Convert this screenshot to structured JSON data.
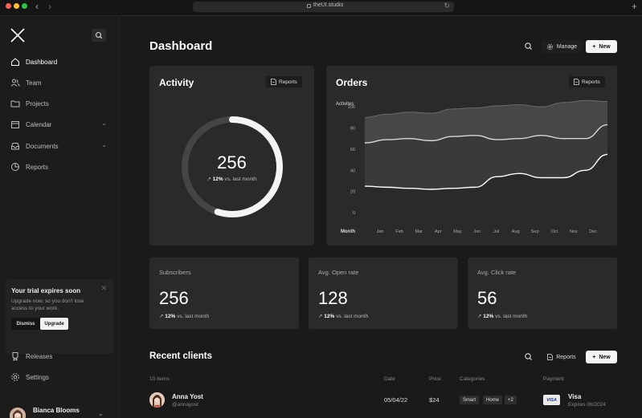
{
  "browser": {
    "url": "theUI.studio"
  },
  "sidebar": {
    "items": [
      {
        "label": "Dashboard",
        "icon": "home-icon",
        "active": true
      },
      {
        "label": "Team",
        "icon": "users-icon"
      },
      {
        "label": "Projects",
        "icon": "folder-icon"
      },
      {
        "label": "Calendar",
        "icon": "calendar-icon",
        "expandable": true
      },
      {
        "label": "Documents",
        "icon": "inbox-icon",
        "expandable": true
      },
      {
        "label": "Reports",
        "icon": "pie-chart-icon"
      }
    ],
    "trial": {
      "title": "Your trial expires soon",
      "text": "Upgrade now, so you don't lose access to your work.",
      "dismiss": "Dismiss",
      "upgrade": "Upgrade"
    },
    "bottom_items": [
      {
        "label": "Releases",
        "icon": "badge-icon"
      },
      {
        "label": "Settings",
        "icon": "gear-icon"
      }
    ],
    "user": {
      "name": "Bianca Blooms"
    }
  },
  "header": {
    "title": "Dashboard",
    "manage": "Manage",
    "new": "New"
  },
  "activity": {
    "title": "Activity",
    "reports": "Reports",
    "value": "256",
    "change": "12%",
    "change_text": "vs. last month",
    "progress": 0.55
  },
  "orders": {
    "title": "Orders",
    "reports": "Reports"
  },
  "chart_data": {
    "type": "area",
    "ylabel": "Activites",
    "xlabel": "Month",
    "categories": [
      "Jan",
      "Feb",
      "Mar",
      "Apr",
      "May",
      "Jun",
      "Jul",
      "Aug",
      "Sep",
      "Oct",
      "Nov",
      "Dec"
    ],
    "yticks": [
      0,
      20,
      40,
      60,
      80,
      100
    ],
    "ylim": [
      0,
      110
    ],
    "series": [
      {
        "values": [
          90,
          93,
          95,
          94,
          98,
          99,
          101,
          102,
          100,
          104,
          106,
          105
        ]
      },
      {
        "values": [
          66,
          69,
          70,
          68,
          72,
          73,
          69,
          70,
          73,
          70,
          70,
          83
        ]
      },
      {
        "values": [
          25,
          24,
          23,
          22,
          23,
          24,
          34,
          37,
          33,
          33,
          40,
          55
        ]
      }
    ]
  },
  "stats": [
    {
      "label": "Subscribers",
      "value": "256",
      "change": "12%",
      "change_text": "vs. last month"
    },
    {
      "label": "Avg. Open rate",
      "value": "128",
      "change": "12%",
      "change_text": "vs. last month"
    },
    {
      "label": "Avg. Click rate",
      "value": "56",
      "change": "12%",
      "change_text": "vs. last month"
    }
  ],
  "recent_clients": {
    "title": "Recent clients",
    "reports": "Reports",
    "new": "New",
    "columns": [
      "10 items",
      "Date",
      "Price",
      "Categories",
      "Payment"
    ],
    "rows": [
      {
        "name": "Anna Yost",
        "handle": "@annayost",
        "date": "05/04/22",
        "price": "$24",
        "categories": [
          "Smart",
          "Home",
          "+2"
        ],
        "card_brand": "VISA",
        "payment": "Visa",
        "expires": "Expires 06/2024"
      }
    ]
  }
}
